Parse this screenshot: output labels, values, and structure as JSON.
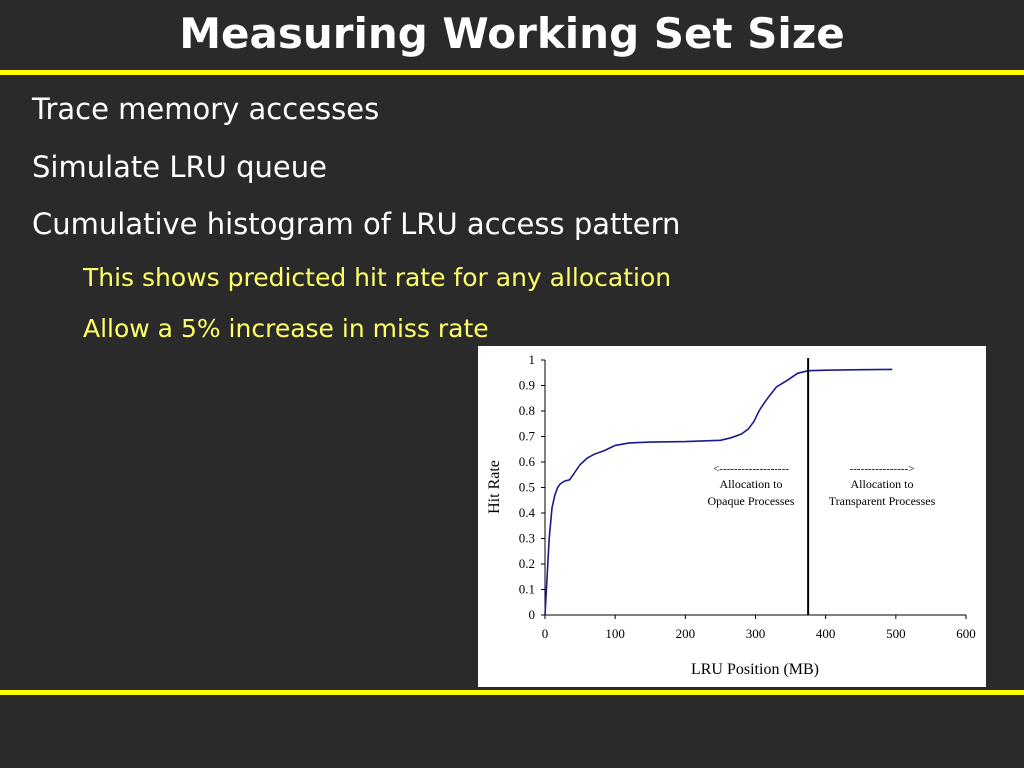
{
  "slide": {
    "title": "Measuring Working Set Size",
    "bullets": [
      "Trace memory accesses",
      "Simulate LRU queue",
      "Cumulative histogram of LRU access pattern"
    ],
    "sub_bullets": [
      "This shows predicted hit rate for any allocation",
      "Allow a 5% increase in miss rate"
    ]
  },
  "colors": {
    "background": "#2a2a2a",
    "rule": "#ffff00",
    "title_text": "#ffffff",
    "sub_text": "#ffff66",
    "series": "#1a1a8c"
  },
  "chart_data": {
    "type": "line",
    "title": "",
    "xlabel": "LRU Position (MB)",
    "ylabel": "Hit Rate",
    "xlim": [
      0,
      600
    ],
    "ylim": [
      0,
      1
    ],
    "xticks": [
      0,
      100,
      200,
      300,
      400,
      500,
      600
    ],
    "yticks": [
      0,
      0.1,
      0.2,
      0.3,
      0.4,
      0.5,
      0.6,
      0.7,
      0.8,
      0.9,
      1
    ],
    "grid": false,
    "legend": "none",
    "series": [
      {
        "x": [
          0,
          3,
          6,
          10,
          14,
          18,
          22,
          28,
          35,
          40,
          50,
          60,
          70,
          85,
          100,
          120,
          150,
          200,
          250,
          265,
          280,
          290,
          298,
          305,
          312,
          320,
          330,
          345,
          360,
          375,
          400,
          450,
          495
        ],
        "y": [
          0.0,
          0.15,
          0.3,
          0.42,
          0.47,
          0.5,
          0.515,
          0.525,
          0.53,
          0.55,
          0.59,
          0.615,
          0.63,
          0.645,
          0.665,
          0.675,
          0.678,
          0.68,
          0.685,
          0.695,
          0.71,
          0.73,
          0.76,
          0.8,
          0.83,
          0.86,
          0.895,
          0.92,
          0.948,
          0.958,
          0.96,
          0.962,
          0.963
        ]
      }
    ],
    "vline": {
      "x": 375
    },
    "annotations": {
      "left_arrow": "<-------------------",
      "left_line1": "Allocation to",
      "left_line2": "Opaque Processes",
      "right_arrow": "---------------->",
      "right_line1": "Allocation to",
      "right_line2": "Transparent Processes"
    }
  }
}
